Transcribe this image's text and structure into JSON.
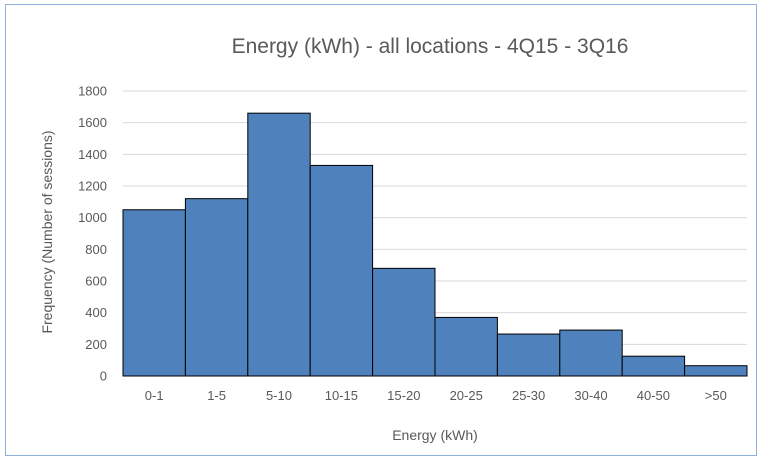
{
  "chart_data": {
    "type": "bar",
    "title": "Energy (kWh) - all locations - 4Q15 - 3Q16",
    "xlabel": "Energy (kWh)",
    "ylabel": "Frequency (Number of sessions)",
    "categories": [
      "0-1",
      "1-5",
      "5-10",
      "10-15",
      "15-20",
      "20-25",
      "25-30",
      "30-40",
      "40-50",
      ">50"
    ],
    "values": [
      1050,
      1120,
      1660,
      1330,
      680,
      370,
      265,
      290,
      125,
      65
    ],
    "ylim": [
      0,
      1800
    ],
    "yticks": [
      0,
      200,
      400,
      600,
      800,
      1000,
      1200,
      1400,
      1600,
      1800
    ],
    "grid": true,
    "bar_color": "#4f81bd",
    "legend": "none"
  }
}
